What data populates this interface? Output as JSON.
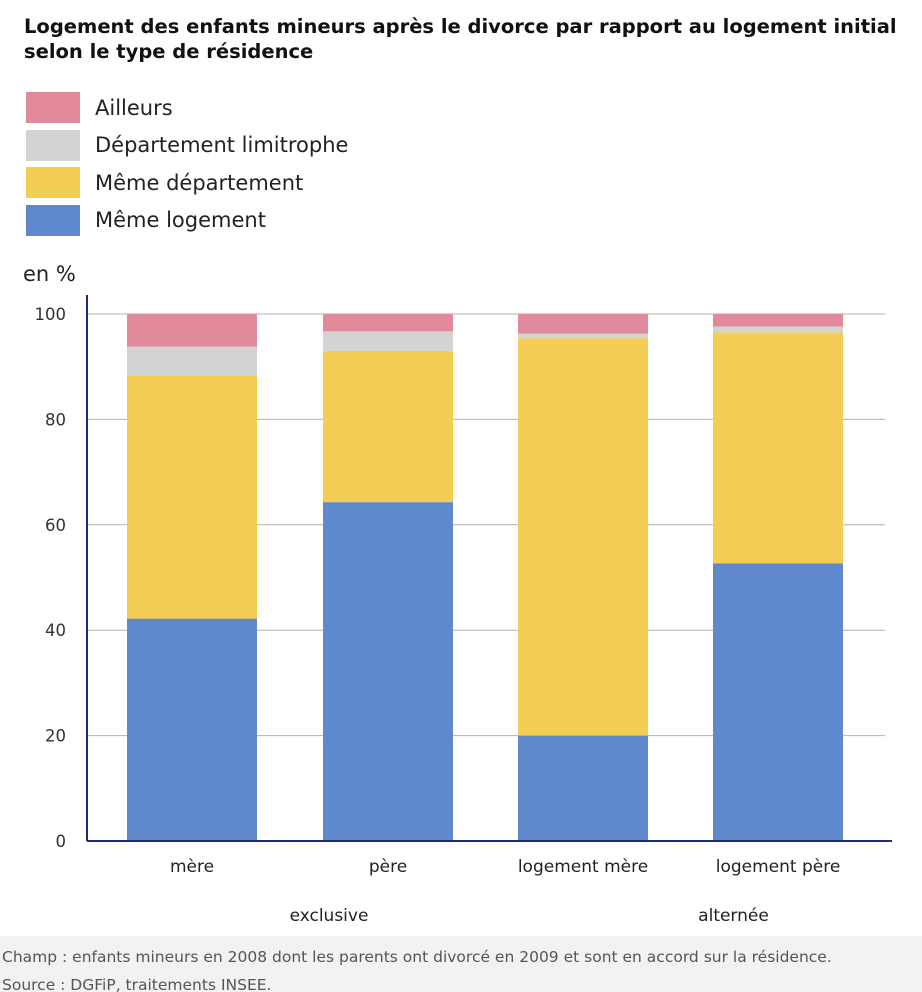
{
  "title": "Logement des enfants mineurs après le divorce par rapport au logement initial selon le type de résidence",
  "unit_label": "en %",
  "footer": {
    "champ": "Champ : enfants mineurs en 2008 dont les parents ont divorcé en 2009 et sont en accord sur la résidence.",
    "source": "Source : DGFiP, traitements INSEE."
  },
  "legend": [
    {
      "label": "Ailleurs",
      "color": "#e08a9c"
    },
    {
      "label": "Département limitrophe",
      "color": "#d3d3d3"
    },
    {
      "label": "Même département",
      "color": "#f4cd55"
    },
    {
      "label": "Même logement",
      "color": "#6088cd"
    }
  ],
  "chart_data": {
    "type": "bar",
    "stacked": true,
    "categories": [
      "mère",
      "père",
      "logement mère",
      "logement père"
    ],
    "groups": [
      {
        "label": "exclusive",
        "categories": [
          "mère",
          "père"
        ]
      },
      {
        "label": "alternée",
        "categories": [
          "logement mère",
          "logement père"
        ]
      }
    ],
    "series": [
      {
        "name": "Même logement",
        "color": "#6088cd",
        "values": [
          42.2,
          64.3,
          20.0,
          52.7
        ]
      },
      {
        "name": "Même département",
        "color": "#f4cd55",
        "values": [
          46.2,
          28.7,
          75.4,
          43.8
        ]
      },
      {
        "name": "Département limitrophe",
        "color": "#d3d3d3",
        "values": [
          5.4,
          3.7,
          0.9,
          1.1
        ]
      },
      {
        "name": "Ailleurs",
        "color": "#e08a9c",
        "values": [
          6.2,
          3.3,
          3.7,
          2.4
        ]
      }
    ],
    "ylabel": "en %",
    "ylim": [
      0,
      100
    ],
    "yticks": [
      0,
      20,
      40,
      60,
      80,
      100
    ],
    "grid": true,
    "legend_position": "top-left"
  }
}
